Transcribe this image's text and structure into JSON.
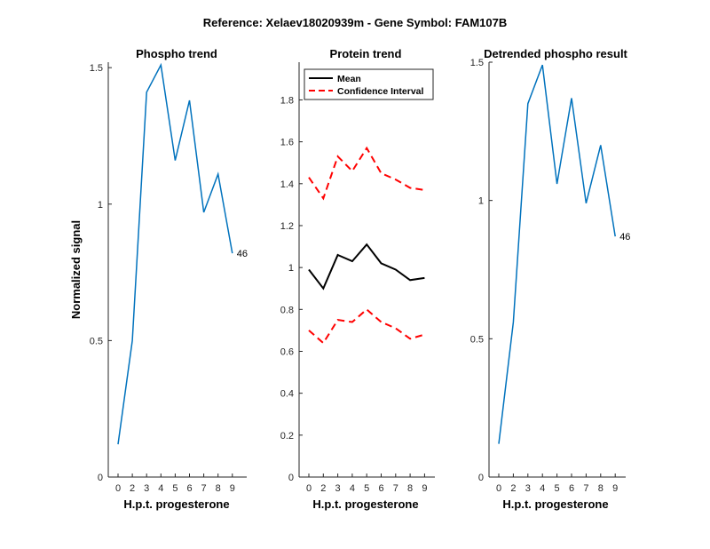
{
  "suptitle": "Reference:  Xelaev18020939m - Gene Symbol:  FAM107B",
  "colors": {
    "phospho": "#0072BD",
    "mean": "#000000",
    "ci": "#FF0000",
    "axis": "#262626"
  },
  "chart_data": [
    {
      "id": "phospho",
      "type": "line",
      "title": "Phospho trend",
      "xlabel": "H.p.t. progesterone",
      "ylabel": "Normalized signal",
      "categories": [
        "0",
        "2",
        "3",
        "4",
        "5",
        "6",
        "7",
        "8",
        "9"
      ],
      "ylim": [
        0,
        1.52
      ],
      "yticks": [
        0,
        0.5,
        1,
        1.5
      ],
      "ytick_labels": [
        "0",
        "0.5",
        "1",
        "1.5"
      ],
      "series": [
        {
          "name": "Phospho",
          "color": "#0072BD",
          "dashed": false,
          "values": [
            0.12,
            0.5,
            1.41,
            1.51,
            1.16,
            1.38,
            0.97,
            1.11,
            0.82
          ]
        }
      ],
      "end_label": "46"
    },
    {
      "id": "protein",
      "type": "line",
      "title": "Protein trend",
      "xlabel": "H.p.t. progesterone",
      "ylabel": "",
      "categories": [
        "0",
        "2",
        "3",
        "4",
        "5",
        "6",
        "7",
        "8",
        "9"
      ],
      "ylim": [
        0,
        1.98
      ],
      "yticks": [
        0,
        0.2,
        0.4,
        0.6,
        0.8,
        1,
        1.2,
        1.4,
        1.6,
        1.8
      ],
      "ytick_labels": [
        "0",
        "0.2",
        "0.4",
        "0.6",
        "0.8",
        "1",
        "1.2",
        "1.4",
        "1.6",
        "1.8"
      ],
      "legend": {
        "position": "top-left",
        "entries": [
          "Mean",
          "Confidence Interval"
        ]
      },
      "series": [
        {
          "name": "Mean",
          "color": "#000000",
          "dashed": false,
          "values": [
            0.99,
            0.9,
            1.06,
            1.03,
            1.11,
            1.02,
            0.99,
            0.94,
            0.95
          ]
        },
        {
          "name": "Confidence Interval",
          "color": "#FF0000",
          "dashed": true,
          "values": [
            1.43,
            1.33,
            1.53,
            1.46,
            1.57,
            1.45,
            1.42,
            1.38,
            1.37
          ]
        },
        {
          "name": "Confidence Interval (lower)",
          "color": "#FF0000",
          "dashed": true,
          "values": [
            0.7,
            0.64,
            0.75,
            0.74,
            0.8,
            0.74,
            0.71,
            0.66,
            0.68
          ]
        }
      ]
    },
    {
      "id": "detrended",
      "type": "line",
      "title": "Detrended phospho result",
      "xlabel": "H.p.t. progesterone",
      "ylabel": "",
      "categories": [
        "0",
        "2",
        "3",
        "4",
        "5",
        "6",
        "7",
        "8",
        "9"
      ],
      "ylim": [
        0,
        1.5
      ],
      "yticks": [
        0,
        0.5,
        1,
        1.5
      ],
      "ytick_labels": [
        "0",
        "0.5",
        "1",
        "1.5"
      ],
      "series": [
        {
          "name": "Detrended",
          "color": "#0072BD",
          "dashed": false,
          "values": [
            0.12,
            0.56,
            1.35,
            1.49,
            1.06,
            1.37,
            0.99,
            1.2,
            0.87
          ]
        }
      ],
      "end_label": "46"
    }
  ]
}
